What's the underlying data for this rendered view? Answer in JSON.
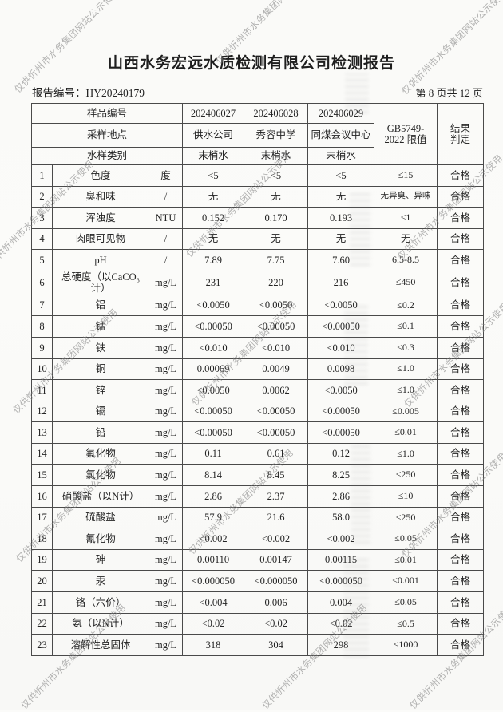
{
  "watermark": {
    "text": "仅供忻州市水务集团网站公示使用"
  },
  "header": {
    "title": "山西水务宏远水质检测有限公司检测报告",
    "report_no_label": "报告编号：",
    "report_no": "HY20240179",
    "page_info": "第 8 页共 12 页"
  },
  "table": {
    "meta_rows": [
      {
        "label": "样品编号",
        "values": [
          "202406027",
          "202406028",
          "202406029"
        ]
      },
      {
        "label": "采样地点",
        "values": [
          "供水公司",
          "秀容中学",
          "同煤会议中心"
        ]
      },
      {
        "label": "水样类别",
        "values": [
          "末梢水",
          "末梢水",
          "末梢水"
        ]
      }
    ],
    "limit_header_line1": "GB5749-",
    "limit_header_line2": "2022 限值",
    "result_header_line1": "结果",
    "result_header_line2": "判定",
    "rows": [
      {
        "no": "1",
        "name": "色度",
        "unit": "度",
        "v1": "<5",
        "v2": "<5",
        "v3": "<5",
        "limit": "≤15",
        "result": "合格"
      },
      {
        "no": "2",
        "name": "臭和味",
        "unit": "/",
        "v1": "无",
        "v2": "无",
        "v3": "无",
        "limit": "无异臭、异味",
        "result": "合格"
      },
      {
        "no": "3",
        "name": "浑浊度",
        "unit": "NTU",
        "v1": "0.152",
        "v2": "0.170",
        "v3": "0.193",
        "limit": "≤1",
        "result": "合格"
      },
      {
        "no": "4",
        "name": "肉眼可见物",
        "unit": "/",
        "v1": "无",
        "v2": "无",
        "v3": "无",
        "limit": "无",
        "result": "合格"
      },
      {
        "no": "5",
        "name": "pH",
        "unit": "/",
        "v1": "7.89",
        "v2": "7.75",
        "v3": "7.60",
        "limit": "6.5-8.5",
        "result": "合格"
      },
      {
        "no": "6",
        "name": "总硬度（以CaCO₃计）",
        "unit": "mg/L",
        "v1": "231",
        "v2": "220",
        "v3": "216",
        "limit": "≤450",
        "result": "合格"
      },
      {
        "no": "7",
        "name": "铝",
        "unit": "mg/L",
        "v1": "<0.0050",
        "v2": "<0.0050",
        "v3": "<0.0050",
        "limit": "≤0.2",
        "result": "合格"
      },
      {
        "no": "8",
        "name": "锰",
        "unit": "mg/L",
        "v1": "<0.00050",
        "v2": "<0.00050",
        "v3": "<0.00050",
        "limit": "≤0.1",
        "result": "合格"
      },
      {
        "no": "9",
        "name": "铁",
        "unit": "mg/L",
        "v1": "<0.010",
        "v2": "<0.010",
        "v3": "<0.010",
        "limit": "≤0.3",
        "result": "合格"
      },
      {
        "no": "10",
        "name": "铜",
        "unit": "mg/L",
        "v1": "0.00069",
        "v2": "0.0049",
        "v3": "0.0098",
        "limit": "≤1.0",
        "result": "合格"
      },
      {
        "no": "11",
        "name": "锌",
        "unit": "mg/L",
        "v1": "<0.0050",
        "v2": "0.0062",
        "v3": "<0.0050",
        "limit": "≤1.0",
        "result": "合格"
      },
      {
        "no": "12",
        "name": "镉",
        "unit": "mg/L",
        "v1": "<0.00050",
        "v2": "<0.00050",
        "v3": "<0.00050",
        "limit": "≤0.005",
        "result": "合格"
      },
      {
        "no": "13",
        "name": "铅",
        "unit": "mg/L",
        "v1": "<0.00050",
        "v2": "<0.00050",
        "v3": "<0.00050",
        "limit": "≤0.01",
        "result": "合格"
      },
      {
        "no": "14",
        "name": "氟化物",
        "unit": "mg/L",
        "v1": "0.11",
        "v2": "0.61",
        "v3": "0.12",
        "limit": "≤1.0",
        "result": "合格"
      },
      {
        "no": "15",
        "name": "氯化物",
        "unit": "mg/L",
        "v1": "8.14",
        "v2": "8.45",
        "v3": "8.25",
        "limit": "≤250",
        "result": "合格"
      },
      {
        "no": "16",
        "name": "硝酸盐（以N计）",
        "unit": "mg/L",
        "v1": "2.86",
        "v2": "2.37",
        "v3": "2.86",
        "limit": "≤10",
        "result": "合格"
      },
      {
        "no": "17",
        "name": "硫酸盐",
        "unit": "mg/L",
        "v1": "57.9",
        "v2": "21.6",
        "v3": "58.0",
        "limit": "≤250",
        "result": "合格"
      },
      {
        "no": "18",
        "name": "氰化物",
        "unit": "mg/L",
        "v1": "<0.002",
        "v2": "<0.002",
        "v3": "<0.002",
        "limit": "≤0.05",
        "result": "合格"
      },
      {
        "no": "19",
        "name": "砷",
        "unit": "mg/L",
        "v1": "0.00110",
        "v2": "0.00147",
        "v3": "0.00115",
        "limit": "≤0.01",
        "result": "合格"
      },
      {
        "no": "20",
        "name": "汞",
        "unit": "mg/L",
        "v1": "<0.000050",
        "v2": "<0.000050",
        "v3": "<0.000050",
        "limit": "≤0.001",
        "result": "合格"
      },
      {
        "no": "21",
        "name": "铬（六价）",
        "unit": "mg/L",
        "v1": "<0.004",
        "v2": "0.006",
        "v3": "0.004",
        "limit": "≤0.05",
        "result": "合格"
      },
      {
        "no": "22",
        "name": "氨（以N计）",
        "unit": "mg/L",
        "v1": "<0.02",
        "v2": "<0.02",
        "v3": "<0.02",
        "limit": "≤0.5",
        "result": "合格"
      },
      {
        "no": "23",
        "name": "溶解性总固体",
        "unit": "mg/L",
        "v1": "318",
        "v2": "304",
        "v3": "298",
        "limit": "≤1000",
        "result": "合格"
      }
    ]
  }
}
